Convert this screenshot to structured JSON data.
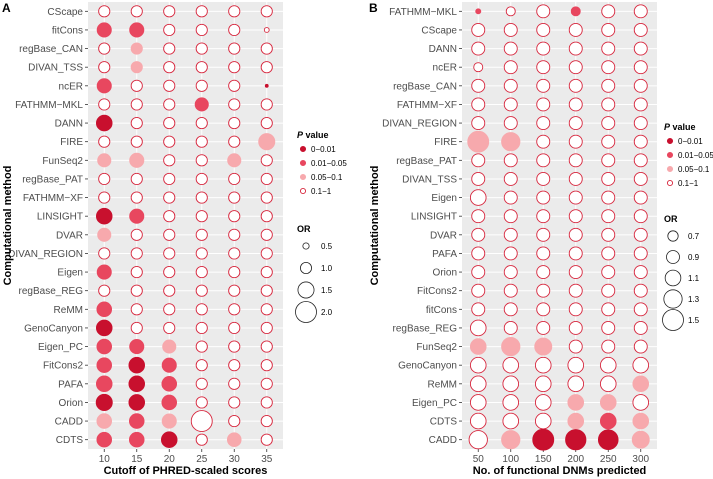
{
  "chart_data": [
    {
      "type": "scatter",
      "panel": "A",
      "xlabel": "Cutoff of PHRED-scaled scores",
      "ylabel": "Computational method",
      "x": [
        "10",
        "15",
        "20",
        "25",
        "30",
        "35"
      ],
      "methods": [
        "CScape",
        "fitCons",
        "regBase_CAN",
        "DIVAN_TSS",
        "ncER",
        "FATHMM−MKL",
        "DANN",
        "FIRE",
        "FunSeq2",
        "regBase_PAT",
        "FATHMM−XF",
        "LINSIGHT",
        "DVAR",
        "DIVAN_REGION",
        "Eigen",
        "regBase_REG",
        "ReMM",
        "GenoCanyon",
        "Eigen_PC",
        "FitCons2",
        "PAFA",
        "Orion",
        "CADD",
        "CDTS"
      ],
      "or": [
        [
          1.0,
          1.0,
          1.0,
          1.0,
          1.0,
          1.0
        ],
        [
          1.3,
          1.3,
          1.0,
          1.0,
          1.0,
          0.35
        ],
        [
          1.0,
          1.0,
          1.0,
          1.0,
          1.0,
          1.0
        ],
        [
          1.0,
          1.0,
          1.0,
          1.0,
          1.0,
          1.0
        ],
        [
          1.3,
          1.0,
          1.0,
          1.0,
          1.0,
          0.15
        ],
        [
          1.0,
          1.0,
          1.0,
          1.2,
          1.0,
          1.0
        ],
        [
          1.45,
          1.0,
          1.0,
          1.0,
          1.0,
          1.0
        ],
        [
          1.0,
          1.0,
          1.0,
          1.0,
          1.0,
          1.5
        ],
        [
          1.2,
          1.3,
          1.0,
          1.0,
          1.2,
          1.0
        ],
        [
          1.0,
          1.0,
          1.0,
          1.0,
          1.0,
          1.0
        ],
        [
          1.0,
          1.0,
          1.0,
          1.0,
          1.0,
          1.0
        ],
        [
          1.45,
          1.3,
          1.0,
          1.0,
          1.0,
          1.0
        ],
        [
          1.2,
          1.0,
          1.0,
          1.0,
          1.0,
          1.0
        ],
        [
          1.0,
          1.0,
          1.0,
          1.0,
          1.0,
          1.0
        ],
        [
          1.3,
          1.0,
          1.0,
          1.0,
          1.0,
          1.0
        ],
        [
          1.0,
          1.0,
          1.0,
          1.0,
          1.0,
          1.0
        ],
        [
          1.35,
          1.0,
          1.0,
          1.0,
          1.0,
          1.0
        ],
        [
          1.45,
          1.0,
          1.0,
          1.0,
          1.0,
          1.0
        ],
        [
          1.35,
          1.3,
          1.2,
          1.0,
          1.0,
          1.0
        ],
        [
          1.35,
          1.45,
          1.3,
          1.0,
          1.0,
          1.0
        ],
        [
          1.45,
          1.45,
          1.35,
          1.0,
          1.0,
          1.0
        ],
        [
          1.5,
          1.45,
          1.35,
          1.0,
          1.0,
          1.0
        ],
        [
          1.35,
          1.35,
          1.3,
          2.0,
          1.0,
          1.0
        ],
        [
          1.35,
          1.35,
          1.45,
          1.0,
          1.25,
          1.0
        ]
      ],
      "p": [
        [
          4,
          4,
          4,
          4,
          4,
          4
        ],
        [
          2,
          2,
          4,
          4,
          4,
          4
        ],
        [
          4,
          3,
          4,
          4,
          4,
          4
        ],
        [
          4,
          3,
          4,
          4,
          4,
          4
        ],
        [
          2,
          4,
          4,
          4,
          4,
          1
        ],
        [
          4,
          4,
          4,
          2,
          4,
          4
        ],
        [
          1,
          4,
          4,
          4,
          4,
          4
        ],
        [
          4,
          4,
          4,
          4,
          4,
          3
        ],
        [
          3,
          3,
          4,
          4,
          3,
          4
        ],
        [
          4,
          4,
          4,
          4,
          4,
          4
        ],
        [
          4,
          4,
          4,
          4,
          4,
          4
        ],
        [
          1,
          2,
          4,
          4,
          4,
          4
        ],
        [
          3,
          4,
          4,
          4,
          4,
          4
        ],
        [
          4,
          4,
          4,
          4,
          4,
          4
        ],
        [
          2,
          4,
          4,
          4,
          4,
          4
        ],
        [
          4,
          4,
          4,
          4,
          4,
          4
        ],
        [
          2,
          4,
          4,
          4,
          4,
          4
        ],
        [
          1,
          4,
          4,
          4,
          4,
          4
        ],
        [
          2,
          2,
          3,
          4,
          4,
          4
        ],
        [
          2,
          1,
          2,
          4,
          4,
          4
        ],
        [
          2,
          1,
          2,
          4,
          4,
          4
        ],
        [
          1,
          1,
          2,
          4,
          4,
          4
        ],
        [
          3,
          2,
          3,
          4,
          4,
          4
        ],
        [
          2,
          2,
          1,
          4,
          3,
          4
        ]
      ],
      "p_legend": {
        "title_italic": "P",
        "title": " value",
        "labels": [
          "0−0.01",
          "0.01−0.05",
          "0.05−0.1",
          "0.1−1"
        ]
      },
      "or_legend": {
        "title": "OR",
        "values": [
          0.5,
          1.0,
          1.5,
          2.0
        ],
        "labels": [
          "0.5",
          "1.0",
          "1.5",
          "2.0"
        ]
      },
      "or_range": [
        0.1,
        2.0
      ]
    },
    {
      "type": "scatter",
      "panel": "B",
      "xlabel": "No. of functional DNMs predicted",
      "ylabel": "Computational method",
      "x": [
        "50",
        "100",
        "150",
        "200",
        "250",
        "300"
      ],
      "methods": [
        "FATHMM−MKL",
        "CScape",
        "DANN",
        "ncER",
        "regBase_CAN",
        "FATHMM−XF",
        "DIVAN_REGION",
        "FIRE",
        "regBase_PAT",
        "DIVAN_TSS",
        "Eigen",
        "LINSIGHT",
        "DVAR",
        "PAFA",
        "Orion",
        "FitCons2",
        "fitCons",
        "regBase_REG",
        "FunSeq2",
        "GenoCanyon",
        "ReMM",
        "Eigen_PC",
        "CDTS",
        "CADD"
      ],
      "or": [
        [
          0.3,
          0.6,
          0.9,
          0.6,
          0.9,
          0.9
        ],
        [
          0.9,
          0.9,
          0.9,
          0.9,
          0.9,
          0.9
        ],
        [
          0.9,
          0.9,
          0.9,
          0.9,
          0.9,
          0.9
        ],
        [
          0.6,
          0.9,
          0.9,
          0.9,
          0.9,
          0.9
        ],
        [
          0.9,
          0.9,
          0.9,
          0.9,
          0.9,
          0.9
        ],
        [
          0.9,
          0.9,
          0.9,
          0.9,
          0.9,
          0.9
        ],
        [
          0.9,
          0.9,
          0.9,
          0.9,
          0.9,
          0.9
        ],
        [
          1.5,
          1.3,
          0.9,
          0.9,
          0.9,
          0.9
        ],
        [
          0.9,
          0.9,
          0.9,
          0.9,
          0.9,
          0.9
        ],
        [
          0.9,
          0.9,
          0.9,
          0.9,
          0.9,
          0.9
        ],
        [
          1.1,
          0.9,
          0.9,
          0.9,
          0.9,
          0.9
        ],
        [
          0.9,
          0.9,
          0.9,
          0.9,
          0.9,
          0.9
        ],
        [
          0.9,
          0.9,
          0.9,
          0.9,
          0.9,
          0.9
        ],
        [
          0.9,
          0.9,
          0.9,
          0.9,
          0.9,
          0.9
        ],
        [
          0.9,
          0.9,
          0.9,
          0.9,
          0.9,
          0.9
        ],
        [
          0.9,
          0.9,
          0.9,
          0.9,
          0.9,
          0.9
        ],
        [
          0.9,
          0.9,
          0.9,
          0.9,
          0.9,
          0.9
        ],
        [
          1.1,
          0.9,
          0.9,
          0.9,
          0.9,
          0.9
        ],
        [
          1.1,
          1.3,
          1.2,
          0.9,
          0.9,
          0.9
        ],
        [
          1.1,
          1.1,
          1.1,
          1.1,
          1.1,
          1.1
        ],
        [
          1.1,
          1.1,
          1.1,
          1.1,
          1.1,
          1.1
        ],
        [
          1.1,
          1.1,
          1.1,
          1.1,
          1.1,
          1.1
        ],
        [
          1.1,
          1.1,
          1.1,
          1.1,
          1.1,
          1.1
        ],
        [
          1.3,
          1.3,
          1.5,
          1.45,
          1.4,
          1.2
        ]
      ],
      "p": [
        [
          2,
          4,
          4,
          2,
          4,
          4
        ],
        [
          4,
          4,
          4,
          4,
          4,
          4
        ],
        [
          4,
          4,
          4,
          4,
          4,
          4
        ],
        [
          4,
          4,
          4,
          4,
          4,
          4
        ],
        [
          4,
          4,
          4,
          4,
          4,
          4
        ],
        [
          4,
          4,
          4,
          4,
          4,
          4
        ],
        [
          4,
          4,
          4,
          4,
          4,
          4
        ],
        [
          3,
          3,
          4,
          4,
          4,
          4
        ],
        [
          4,
          4,
          4,
          4,
          4,
          4
        ],
        [
          4,
          4,
          4,
          4,
          4,
          4
        ],
        [
          4,
          4,
          4,
          4,
          4,
          4
        ],
        [
          4,
          4,
          4,
          4,
          4,
          4
        ],
        [
          4,
          4,
          4,
          4,
          4,
          4
        ],
        [
          4,
          4,
          4,
          4,
          4,
          4
        ],
        [
          4,
          4,
          4,
          4,
          4,
          4
        ],
        [
          4,
          4,
          4,
          4,
          4,
          4
        ],
        [
          4,
          4,
          4,
          4,
          4,
          4
        ],
        [
          4,
          4,
          4,
          4,
          4,
          4
        ],
        [
          3,
          3,
          3,
          4,
          4,
          4
        ],
        [
          4,
          4,
          4,
          4,
          4,
          4
        ],
        [
          4,
          4,
          4,
          4,
          4,
          3
        ],
        [
          4,
          4,
          4,
          3,
          3,
          4
        ],
        [
          4,
          4,
          4,
          3,
          2,
          3
        ],
        [
          4,
          3,
          1,
          1,
          1,
          3
        ]
      ],
      "p_legend": {
        "title_italic": "P",
        "title": " value",
        "labels": [
          "0−0.01",
          "0.01−0.05",
          "0.05−0.1",
          "0.1−1"
        ]
      },
      "or_legend": {
        "title": "OR",
        "values": [
          0.7,
          0.9,
          1.1,
          1.3,
          1.5
        ],
        "labels": [
          "0.7",
          "0.9",
          "1.1",
          "1.3",
          "1.5"
        ]
      },
      "or_range": [
        0.1,
        1.5
      ]
    }
  ],
  "colors": {
    "p1": "#c8102e",
    "p2": "#e8475f",
    "p3": "#f7a9ad",
    "p4_stroke": "#d7263d",
    "panel_bg": "#ebebeb",
    "grid": "#ffffff"
  }
}
